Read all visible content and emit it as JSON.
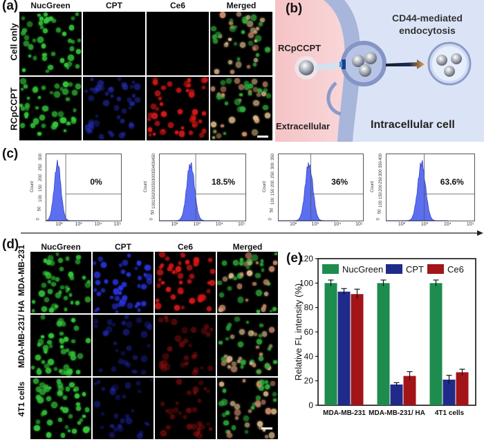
{
  "panel_a": {
    "label": "(a)",
    "columns": [
      "NucGreen",
      "CPT",
      "Ce6",
      "Merged"
    ],
    "rows": [
      "Cell only",
      "RCpCCPT"
    ]
  },
  "panel_b": {
    "label": "(b)",
    "title": "CD44-mediated endocytosis",
    "nanoparticle": "RCpCCPT",
    "outside": "Extracellular",
    "inside": "Intracellular cell"
  },
  "panel_c": {
    "label": "(c)",
    "axis_title": "Count",
    "plots": [
      {
        "percent": "0%",
        "yticks": [
          "0",
          "50",
          "100",
          "150",
          "200",
          "250",
          "300"
        ]
      },
      {
        "percent": "18.5%",
        "yticks": [
          "0",
          "50",
          "100",
          "150",
          "200",
          "250",
          "300",
          "350",
          "400",
          "450"
        ]
      },
      {
        "percent": "36%",
        "yticks": [
          "0",
          "50",
          "100",
          "150",
          "200",
          "250",
          "300",
          "350"
        ]
      },
      {
        "percent": "63.6%",
        "yticks": [
          "0",
          "50",
          "100",
          "150",
          "200",
          "250",
          "300",
          "350",
          "400"
        ]
      }
    ],
    "xticks": [
      "10²",
      "10³",
      "10⁴",
      "10⁵"
    ]
  },
  "panel_d": {
    "label": "(d)",
    "columns": [
      "NucGreen",
      "CPT",
      "Ce6",
      "Merged"
    ],
    "rows": [
      "MDA-MB-231",
      "MDA-MB-231/ HA",
      "4T1 cells"
    ]
  },
  "chart_data": {
    "type": "bar",
    "label": "(e)",
    "title": "",
    "xlabel": "",
    "ylabel": "Relative FL intensity (%)",
    "ylim": [
      0,
      120
    ],
    "yticks": [
      0,
      20,
      40,
      60,
      80,
      100,
      120
    ],
    "categories": [
      "MDA-MB-231",
      "MDA-MB-231/ HA",
      "4T1 cells"
    ],
    "series": [
      {
        "name": "NucGreen",
        "color": "#1e8c4e",
        "values": [
          100,
          100,
          100
        ],
        "errors": [
          2.5,
          2.5,
          2.5
        ]
      },
      {
        "name": "CPT",
        "color": "#1f2a8a",
        "values": [
          93,
          17,
          21
        ],
        "errors": [
          2.5,
          1.5,
          3.5
        ]
      },
      {
        "name": "Ce6",
        "color": "#a31418",
        "values": [
          91,
          24,
          27
        ],
        "errors": [
          4,
          3.5,
          2.5
        ]
      }
    ],
    "legend": "top"
  }
}
